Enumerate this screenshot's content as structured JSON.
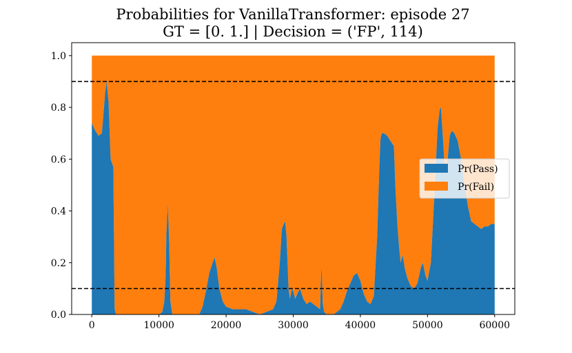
{
  "chart_data": {
    "type": "area",
    "stacked": true,
    "title_line1": "Probabilities for VanillaTransformer: episode 27",
    "title_line2": "GT = [0. 1.] | Decision = ('FP', 114)",
    "xlabel": "",
    "ylabel": "",
    "xlim": [
      -3000,
      63000
    ],
    "ylim": [
      0.0,
      1.05
    ],
    "xticks": [
      0,
      10000,
      20000,
      30000,
      40000,
      50000,
      60000
    ],
    "yticks": [
      0.0,
      0.2,
      0.4,
      0.6,
      0.8,
      1.0
    ],
    "xtick_labels": [
      "0",
      "10000",
      "20000",
      "30000",
      "40000",
      "50000",
      "60000"
    ],
    "ytick_labels": [
      "0.0",
      "0.2",
      "0.4",
      "0.6",
      "0.8",
      "1.0"
    ],
    "thresholds": [
      0.9,
      0.1
    ],
    "threshold_style": "dashed",
    "grid": false,
    "legend_position": "center-right",
    "series": [
      {
        "name": "Pr(Pass)",
        "color": "#1f77b4",
        "x": [
          0,
          500,
          1000,
          1500,
          2000,
          2200,
          2500,
          2800,
          3200,
          3300,
          3400,
          3600,
          5000,
          8000,
          10000,
          10500,
          10800,
          11000,
          11100,
          11300,
          11500,
          11700,
          12000,
          15000,
          16000,
          16500,
          17000,
          17500,
          18000,
          18300,
          18600,
          19000,
          19500,
          20000,
          21000,
          22000,
          23000,
          24000,
          25000,
          26000,
          27000,
          27500,
          28000,
          28300,
          28600,
          28800,
          29000,
          29300,
          29500,
          29800,
          30000,
          30300,
          30600,
          31000,
          31500,
          32000,
          32500,
          33000,
          33500,
          34000,
          34200,
          34400,
          34600,
          35000,
          36000,
          37000,
          37500,
          38000,
          38500,
          39000,
          39500,
          40000,
          40500,
          41000,
          41500,
          42000,
          42500,
          42800,
          43000,
          43200,
          43500,
          44000,
          44500,
          45000,
          45200,
          45500,
          45800,
          46000,
          46300,
          46600,
          47000,
          47500,
          48000,
          48500,
          49000,
          49300,
          49700,
          50000,
          50500,
          51000,
          51500,
          51800,
          52000,
          52300,
          52600,
          53000,
          53300,
          53600,
          54000,
          54500,
          55000,
          55500,
          56000,
          56500,
          57000,
          57500,
          58000,
          58500,
          59000,
          59500,
          60000
        ],
        "values": [
          0.74,
          0.71,
          0.69,
          0.7,
          0.86,
          0.9,
          0.82,
          0.6,
          0.57,
          0.3,
          0.02,
          0.0,
          0.0,
          0.0,
          0.0,
          0.01,
          0.05,
          0.15,
          0.3,
          0.43,
          0.3,
          0.05,
          0.0,
          0.0,
          0.0,
          0.03,
          0.09,
          0.16,
          0.2,
          0.22,
          0.18,
          0.1,
          0.05,
          0.03,
          0.02,
          0.02,
          0.02,
          0.01,
          0.0,
          0.01,
          0.02,
          0.05,
          0.2,
          0.33,
          0.35,
          0.36,
          0.3,
          0.1,
          0.06,
          0.1,
          0.09,
          0.06,
          0.08,
          0.1,
          0.06,
          0.04,
          0.05,
          0.04,
          0.03,
          0.02,
          0.2,
          0.04,
          0.01,
          0.0,
          0.0,
          0.02,
          0.05,
          0.09,
          0.12,
          0.15,
          0.16,
          0.13,
          0.08,
          0.05,
          0.04,
          0.07,
          0.3,
          0.55,
          0.68,
          0.7,
          0.7,
          0.69,
          0.67,
          0.65,
          0.5,
          0.35,
          0.25,
          0.2,
          0.23,
          0.18,
          0.14,
          0.11,
          0.1,
          0.12,
          0.18,
          0.2,
          0.15,
          0.13,
          0.2,
          0.45,
          0.72,
          0.79,
          0.8,
          0.68,
          0.55,
          0.6,
          0.69,
          0.71,
          0.7,
          0.67,
          0.6,
          0.5,
          0.42,
          0.36,
          0.35,
          0.34,
          0.33,
          0.34,
          0.34,
          0.35,
          0.35
        ]
      },
      {
        "name": "Pr(Fail)",
        "color": "#ff7f0e",
        "complement_of": "Pr(Pass)"
      }
    ]
  }
}
